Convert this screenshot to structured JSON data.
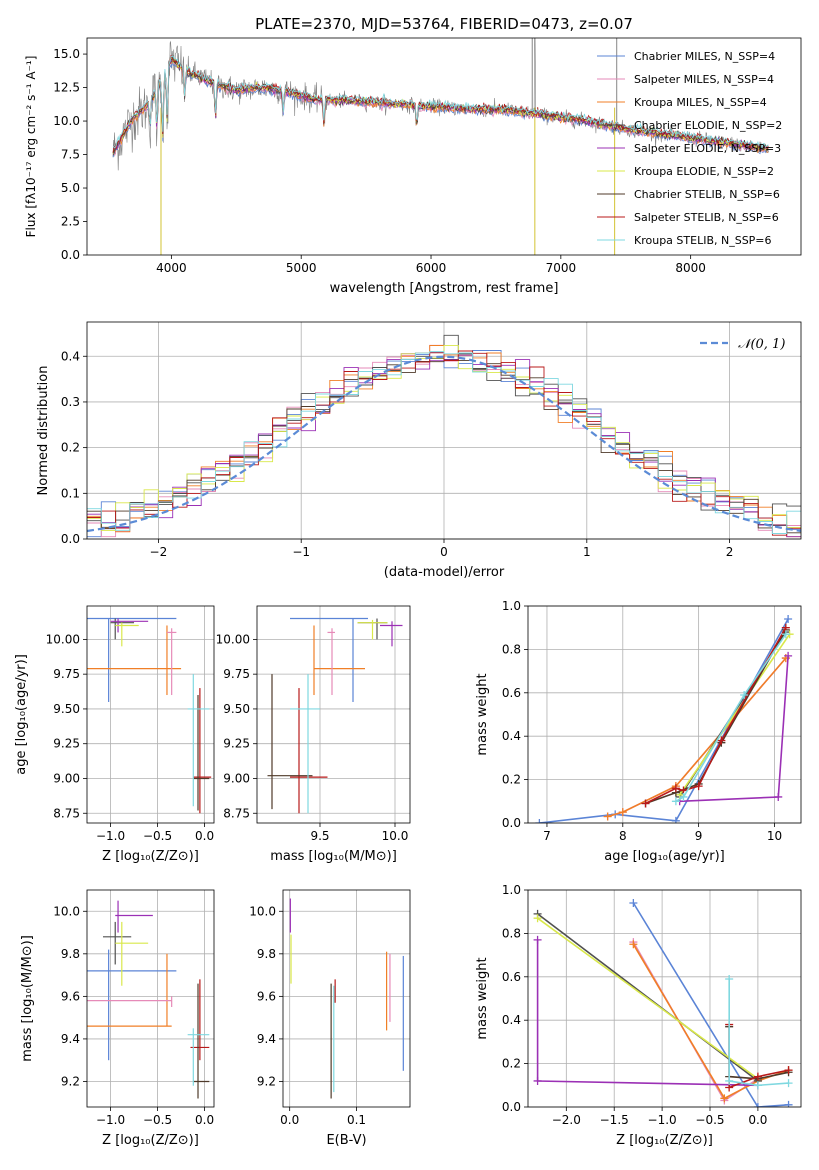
{
  "figure": {
    "title": "PLATE=2370, MJD=53764, FIBERID=0473, z=0.07"
  },
  "colors": {
    "chabrier_miles": "#5b84d6",
    "salpeter_miles": "#e68ab8",
    "kroupa_miles": "#f07f27",
    "chabrier_elodie": "#505050",
    "salpeter_elodie": "#9b30b5",
    "kroupa_elodie": "#d9e84a",
    "chabrier_stelib": "#4f3a2a",
    "salpeter_stelib": "#b81a1a",
    "kroupa_stelib": "#7fd8e0",
    "data": "#7f7f7f",
    "normal": "#5b8bd6"
  },
  "chart_data": [
    {
      "id": "spectrum",
      "type": "line",
      "title": "PLATE=2370, MJD=53764, FIBERID=0473, z=0.07",
      "xlabel": "wavelength [Angstrom, rest frame]",
      "ylabel": "Flux [fλ10⁻¹⁷ erg cm⁻² s⁻¹ A⁻¹]",
      "xlim": [
        3350,
        8850
      ],
      "ylim": [
        0,
        16.2
      ],
      "xticks": [
        4000,
        5000,
        6000,
        7000,
        8000
      ],
      "yticks": [
        0.0,
        2.5,
        5.0,
        7.5,
        10.0,
        12.5,
        15.0
      ],
      "grid": false,
      "legend_position": "top-right",
      "continuum": [
        [
          3550,
          7.6
        ],
        [
          3700,
          10.2
        ],
        [
          3800,
          11.0
        ],
        [
          3900,
          12.6
        ],
        [
          4000,
          14.6
        ],
        [
          4100,
          13.8
        ],
        [
          4300,
          12.9
        ],
        [
          4500,
          12.3
        ],
        [
          4700,
          12.5
        ],
        [
          4900,
          12.2
        ],
        [
          5100,
          11.6
        ],
        [
          5400,
          11.5
        ],
        [
          5700,
          11.3
        ],
        [
          6000,
          11.1
        ],
        [
          6300,
          10.9
        ],
        [
          6600,
          10.8
        ],
        [
          6900,
          10.4
        ],
        [
          7200,
          10.0
        ],
        [
          7500,
          9.4
        ],
        [
          7800,
          9.0
        ],
        [
          8100,
          8.6
        ],
        [
          8400,
          8.2
        ],
        [
          8600,
          7.9
        ]
      ],
      "series": [
        {
          "name": "Chabrier MILES, N_SSP=4",
          "color": "#5b84d6"
        },
        {
          "name": "Salpeter MILES, N_SSP=4",
          "color": "#e68ab8"
        },
        {
          "name": "Kroupa MILES, N_SSP=4",
          "color": "#f07f27"
        },
        {
          "name": "Chabrier ELODIE, N_SSP=2",
          "color": "#505050"
        },
        {
          "name": "Salpeter ELODIE, N_SSP=3",
          "color": "#9b30b5"
        },
        {
          "name": "Kroupa ELODIE, N_SSP=2",
          "color": "#d9e84a"
        },
        {
          "name": "Chabrier STELIB, N_SSP=6",
          "color": "#4f3a2a"
        },
        {
          "name": "Salpeter STELIB, N_SSP=6",
          "color": "#b81a1a"
        },
        {
          "name": "Kroupa STELIB, N_SSP=6",
          "color": "#7fd8e0"
        }
      ]
    },
    {
      "id": "residuals",
      "type": "line",
      "xlabel": "(data-model)/error",
      "ylabel": "Normed distribution",
      "xlim": [
        -2.5,
        2.5
      ],
      "ylim": [
        0,
        0.475
      ],
      "xticks": [
        -2,
        -1,
        0,
        1,
        2
      ],
      "yticks": [
        0.0,
        0.1,
        0.2,
        0.3,
        0.4
      ],
      "grid": true,
      "legend_position": "top-right",
      "legend": "𝒩(0, 1)",
      "normal": {
        "mean": 0,
        "sigma": 1
      }
    },
    {
      "id": "age_vs_z",
      "type": "scatter",
      "xlabel": "Z [log₁₀(Z/Z⊙)]",
      "ylabel": "age  [log₁₀(age/yr)]",
      "xlim": [
        -1.25,
        0.1
      ],
      "ylim": [
        8.68,
        10.24
      ],
      "xticks": [
        -1.0,
        -0.5,
        0.0
      ],
      "xtick_labels": [
        "−1.0",
        "−0.5",
        "0.0"
      ],
      "yticks": [
        8.75,
        9.0,
        9.25,
        9.5,
        9.75,
        10.0
      ],
      "grid": true,
      "points": [
        {
          "x": -1.02,
          "y": 10.15,
          "xlo": -1.25,
          "xhi": -0.3,
          "ylo": 9.55,
          "yhi": 10.15,
          "color": "#5b84d6"
        },
        {
          "x": -0.4,
          "y": 9.79,
          "xlo": -1.25,
          "xhi": -0.25,
          "ylo": 9.6,
          "yhi": 10.1,
          "color": "#f07f27"
        },
        {
          "x": -0.95,
          "y": 10.12,
          "xlo": -1.0,
          "xhi": -0.75,
          "ylo": 10.0,
          "yhi": 10.15,
          "color": "#505050"
        },
        {
          "x": -0.92,
          "y": 10.13,
          "xlo": -1.0,
          "xhi": -0.6,
          "ylo": 10.05,
          "yhi": 10.15,
          "color": "#9b30b5"
        },
        {
          "x": -0.88,
          "y": 10.1,
          "xlo": -0.95,
          "xhi": -0.7,
          "ylo": 9.95,
          "yhi": 10.12,
          "color": "#d9e84a"
        },
        {
          "x": -0.35,
          "y": 10.05,
          "xlo": -0.4,
          "xhi": -0.3,
          "ylo": 9.6,
          "yhi": 10.08,
          "color": "#e68ab8"
        },
        {
          "x": -0.05,
          "y": 9.01,
          "xlo": -0.12,
          "xhi": 0.07,
          "ylo": 8.75,
          "yhi": 9.65,
          "color": "#b81a1a"
        },
        {
          "x": -0.07,
          "y": 9.0,
          "xlo": -0.12,
          "xhi": 0.05,
          "ylo": 8.77,
          "yhi": 9.6,
          "color": "#4f3a2a"
        },
        {
          "x": -0.12,
          "y": 9.5,
          "xlo": -0.18,
          "xhi": 0.05,
          "ylo": 8.8,
          "yhi": 9.75,
          "color": "#7fd8e0"
        }
      ]
    },
    {
      "id": "age_vs_mass",
      "type": "scatter",
      "xlabel": "mass [log₁₀(M/M⊙)]",
      "ylabel": "",
      "xlim": [
        9.08,
        10.1
      ],
      "ylim": [
        8.68,
        10.24
      ],
      "xticks": [
        9.5,
        10.0
      ],
      "yticks": [
        8.75,
        9.0,
        9.25,
        9.5,
        9.75,
        10.0
      ],
      "grid": true,
      "points": [
        {
          "x": 9.72,
          "y": 10.15,
          "xlo": 9.3,
          "xhi": 9.82,
          "ylo": 9.55,
          "yhi": 10.15,
          "color": "#5b84d6"
        },
        {
          "x": 9.46,
          "y": 9.79,
          "xlo": 9.46,
          "xhi": 9.8,
          "ylo": 9.6,
          "yhi": 10.1,
          "color": "#f07f27"
        },
        {
          "x": 9.88,
          "y": 10.12,
          "xlo": 9.75,
          "xhi": 9.95,
          "ylo": 10.0,
          "yhi": 10.15,
          "color": "#505050"
        },
        {
          "x": 9.98,
          "y": 10.1,
          "xlo": 9.9,
          "xhi": 10.05,
          "ylo": 9.95,
          "yhi": 10.13,
          "color": "#9b30b5"
        },
        {
          "x": 9.85,
          "y": 10.12,
          "xlo": 9.75,
          "xhi": 9.95,
          "ylo": 10.0,
          "yhi": 10.14,
          "color": "#d9e84a"
        },
        {
          "x": 9.58,
          "y": 10.05,
          "xlo": 9.55,
          "xhi": 9.6,
          "ylo": 9.6,
          "yhi": 10.08,
          "color": "#e68ab8"
        },
        {
          "x": 9.36,
          "y": 9.01,
          "xlo": 9.3,
          "xhi": 9.55,
          "ylo": 8.75,
          "yhi": 9.65,
          "color": "#b81a1a"
        },
        {
          "x": 9.18,
          "y": 9.02,
          "xlo": 9.15,
          "xhi": 9.45,
          "ylo": 8.78,
          "yhi": 9.75,
          "color": "#4f3a2a"
        },
        {
          "x": 9.42,
          "y": 9.5,
          "xlo": 9.3,
          "xhi": 9.5,
          "ylo": 8.75,
          "yhi": 9.75,
          "color": "#7fd8e0"
        }
      ]
    },
    {
      "id": "weight_vs_age",
      "type": "line",
      "xlabel": "age  [log₁₀(age/yr)]",
      "ylabel": "mass weight",
      "xlim": [
        6.75,
        10.35
      ],
      "ylim": [
        0,
        1.0
      ],
      "xticks": [
        7,
        8,
        9,
        10
      ],
      "yticks": [
        0.0,
        0.2,
        0.4,
        0.6,
        0.8,
        1.0
      ],
      "grid": true,
      "series": [
        {
          "color": "#5b84d6",
          "points": [
            [
              6.9,
              0.0
            ],
            [
              7.9,
              0.04
            ],
            [
              8.7,
              0.01
            ],
            [
              10.18,
              0.94
            ]
          ]
        },
        {
          "color": "#e68ab8",
          "points": [
            [
              7.8,
              0.03
            ],
            [
              8.0,
              0.05
            ],
            [
              8.7,
              0.17
            ],
            [
              10.15,
              0.76
            ]
          ]
        },
        {
          "color": "#f07f27",
          "points": [
            [
              7.8,
              0.03
            ],
            [
              8.0,
              0.05
            ],
            [
              8.7,
              0.17
            ],
            [
              10.15,
              0.76
            ]
          ]
        },
        {
          "color": "#505050",
          "points": [
            [
              8.75,
              0.12
            ],
            [
              10.15,
              0.88
            ]
          ]
        },
        {
          "color": "#9b30b5",
          "points": [
            [
              8.75,
              0.1
            ],
            [
              10.05,
              0.12
            ],
            [
              10.18,
              0.77
            ]
          ]
        },
        {
          "color": "#d9e84a",
          "points": [
            [
              8.75,
              0.13
            ],
            [
              10.2,
              0.87
            ]
          ]
        },
        {
          "color": "#4f3a2a",
          "points": [
            [
              8.3,
              0.09
            ],
            [
              8.7,
              0.14
            ],
            [
              9.0,
              0.18
            ],
            [
              9.3,
              0.37
            ],
            [
              10.15,
              0.89
            ]
          ]
        },
        {
          "color": "#b81a1a",
          "points": [
            [
              8.3,
              0.09
            ],
            [
              8.7,
              0.16
            ],
            [
              8.8,
              0.15
            ],
            [
              9.0,
              0.17
            ],
            [
              9.3,
              0.38
            ],
            [
              10.15,
              0.9
            ]
          ]
        },
        {
          "color": "#7fd8e0",
          "points": [
            [
              8.7,
              0.1
            ],
            [
              8.8,
              0.12
            ],
            [
              9.6,
              0.59
            ],
            [
              10.15,
              0.87
            ]
          ]
        }
      ]
    },
    {
      "id": "mass_vs_z",
      "type": "scatter",
      "xlabel": "Z [log₁₀(Z/Z⊙)]",
      "ylabel": "mass [log₁₀(M/M⊙)]",
      "xlim": [
        -1.25,
        0.1
      ],
      "ylim": [
        9.08,
        10.1
      ],
      "xticks": [
        -1.0,
        -0.5,
        0.0
      ],
      "xtick_labels": [
        "−1.0",
        "−0.5",
        "0.0"
      ],
      "yticks": [
        9.2,
        9.4,
        9.6,
        9.8,
        10.0
      ],
      "grid": true,
      "points": [
        {
          "x": -1.02,
          "y": 9.72,
          "xlo": -1.25,
          "xhi": -0.3,
          "ylo": 9.3,
          "yhi": 9.82,
          "color": "#5b84d6"
        },
        {
          "x": -0.4,
          "y": 9.46,
          "xlo": -1.25,
          "xhi": -0.35,
          "ylo": 9.46,
          "yhi": 9.8,
          "color": "#f07f27"
        },
        {
          "x": -0.95,
          "y": 9.88,
          "xlo": -1.08,
          "xhi": -0.78,
          "ylo": 9.75,
          "yhi": 9.95,
          "color": "#505050"
        },
        {
          "x": -0.92,
          "y": 9.98,
          "xlo": -0.95,
          "xhi": -0.55,
          "ylo": 9.9,
          "yhi": 10.05,
          "color": "#9b30b5"
        },
        {
          "x": -0.88,
          "y": 9.85,
          "xlo": -0.95,
          "xhi": -0.6,
          "ylo": 9.65,
          "yhi": 9.95,
          "color": "#d9e84a"
        },
        {
          "x": -0.35,
          "y": 9.58,
          "xlo": -1.25,
          "xhi": -0.35,
          "ylo": 9.55,
          "yhi": 9.6,
          "color": "#e68ab8"
        },
        {
          "x": -0.05,
          "y": 9.36,
          "xlo": -0.15,
          "xhi": 0.05,
          "ylo": 9.3,
          "yhi": 9.68,
          "color": "#b81a1a"
        },
        {
          "x": -0.07,
          "y": 9.2,
          "xlo": -0.12,
          "xhi": 0.05,
          "ylo": 9.12,
          "yhi": 9.66,
          "color": "#4f3a2a"
        },
        {
          "x": -0.12,
          "y": 9.42,
          "xlo": -0.18,
          "xhi": 0.05,
          "ylo": 9.18,
          "yhi": 9.45,
          "color": "#7fd8e0"
        }
      ]
    },
    {
      "id": "mass_vs_ebv",
      "type": "scatter",
      "xlabel": "E(B-V)",
      "ylabel": "",
      "xlim": [
        -0.01,
        0.18
      ],
      "ylim": [
        9.08,
        10.1
      ],
      "xticks": [
        0.0,
        0.1
      ],
      "yticks": [
        9.2,
        9.4,
        9.6,
        9.8,
        10.0
      ],
      "grid": true,
      "points": [
        {
          "x": 0.17,
          "y": 9.5,
          "ylo": 9.25,
          "yhi": 9.79,
          "color": "#5b84d6"
        },
        {
          "x": 0.145,
          "y": 9.6,
          "ylo": 9.44,
          "yhi": 9.81,
          "color": "#f07f27"
        },
        {
          "x": 0.15,
          "y": 9.62,
          "ylo": 9.48,
          "yhi": 9.8,
          "color": "#e68ab8"
        },
        {
          "x": 0.001,
          "y": 9.98,
          "ylo": 9.9,
          "yhi": 10.06,
          "color": "#9b30b5"
        },
        {
          "x": 0.002,
          "y": 9.8,
          "ylo": 9.66,
          "yhi": 9.89,
          "color": "#d9e84a"
        },
        {
          "x": 0.062,
          "y": 9.4,
          "ylo": 9.12,
          "yhi": 9.66,
          "color": "#4f3a2a"
        },
        {
          "x": 0.068,
          "y": 9.62,
          "ylo": 9.57,
          "yhi": 9.68,
          "color": "#b81a1a"
        },
        {
          "x": 0.066,
          "y": 9.45,
          "ylo": 9.15,
          "yhi": 9.65,
          "color": "#7fd8e0"
        }
      ]
    },
    {
      "id": "weight_vs_z",
      "type": "line",
      "xlabel": "Z [log₁₀(Z/Z⊙)]",
      "ylabel": "mass weight",
      "xlim": [
        -2.4,
        0.45
      ],
      "ylim": [
        0,
        1.0
      ],
      "xticks": [
        -2.0,
        -1.5,
        -1.0,
        -0.5,
        0.0
      ],
      "xtick_labels": [
        "−2.0",
        "−1.5",
        "−1.0",
        "−0.5",
        "0.0"
      ],
      "yticks": [
        0.0,
        0.2,
        0.4,
        0.6,
        0.8,
        1.0
      ],
      "grid": true,
      "series": [
        {
          "color": "#5b84d6",
          "points": [
            [
              -1.3,
              0.94
            ],
            [
              0.0,
              0.0
            ],
            [
              0.32,
              0.01
            ]
          ]
        },
        {
          "color": "#e68ab8",
          "points": [
            [
              -1.3,
              0.76
            ],
            [
              -0.35,
              0.03
            ],
            [
              0.0,
              0.13
            ]
          ]
        },
        {
          "color": "#f07f27",
          "points": [
            [
              -1.3,
              0.75
            ],
            [
              -0.35,
              0.04
            ],
            [
              0.0,
              0.12
            ],
            [
              0.32,
              0.17
            ]
          ]
        },
        {
          "color": "#505050",
          "points": [
            [
              -2.3,
              0.89
            ],
            [
              0.0,
              0.12
            ]
          ]
        },
        {
          "color": "#9b30b5",
          "points": [
            [
              -2.3,
              0.77
            ],
            [
              -2.3,
              0.12
            ],
            [
              0.0,
              0.1
            ]
          ]
        },
        {
          "color": "#d9e84a",
          "points": [
            [
              -2.3,
              0.87
            ],
            [
              0.0,
              0.13
            ]
          ]
        },
        {
          "color": "#4f3a2a",
          "points": [
            [
              -0.3,
              0.37
            ],
            [
              -0.3,
              0.14
            ],
            [
              0.0,
              0.13
            ],
            [
              0.32,
              0.16
            ]
          ]
        },
        {
          "color": "#b81a1a",
          "points": [
            [
              -0.3,
              0.38
            ],
            [
              -0.3,
              0.09
            ],
            [
              0.0,
              0.14
            ],
            [
              0.32,
              0.17
            ]
          ]
        },
        {
          "color": "#7fd8e0",
          "points": [
            [
              -0.3,
              0.59
            ],
            [
              -0.3,
              0.12
            ],
            [
              0.0,
              0.1
            ],
            [
              0.32,
              0.11
            ]
          ]
        }
      ]
    }
  ]
}
